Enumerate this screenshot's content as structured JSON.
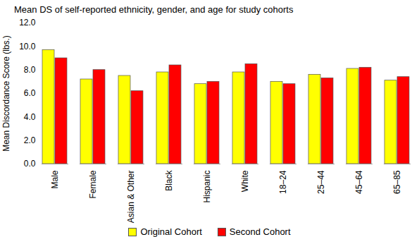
{
  "chart_data": {
    "type": "bar",
    "title": "Mean DS of self-reported ethnicity, gender, and age for study cohorts",
    "y_label": "Mean Discordance Score (lbs.)",
    "categories": [
      "Male",
      "Female",
      "Asian & Other",
      "Black",
      "Hispanic",
      "White",
      "18–24",
      "25–44",
      "45–64",
      "65–85"
    ],
    "series": [
      {
        "name": "Original Cohort",
        "color": "#FFFF00",
        "values": [
          9.7,
          7.2,
          7.5,
          7.8,
          6.8,
          7.8,
          7.0,
          7.6,
          8.1,
          7.1
        ]
      },
      {
        "name": "Second Cohort",
        "color": "#FF0000",
        "values": [
          9.0,
          8.0,
          6.2,
          8.4,
          7.0,
          8.5,
          6.8,
          7.3,
          8.2,
          7.4
        ]
      }
    ],
    "ylim": [
      0,
      12
    ],
    "yticks": [
      {
        "value": 0,
        "label": "0.0"
      },
      {
        "value": 2,
        "label": "2.0"
      },
      {
        "value": 4,
        "label": "4.0"
      },
      {
        "value": 6,
        "label": "6.0"
      },
      {
        "value": 8,
        "label": "8.0"
      },
      {
        "value": 10,
        "label": "10.0"
      },
      {
        "value": 12,
        "label": "12.0"
      }
    ],
    "grid": false,
    "legend": "bottom"
  }
}
